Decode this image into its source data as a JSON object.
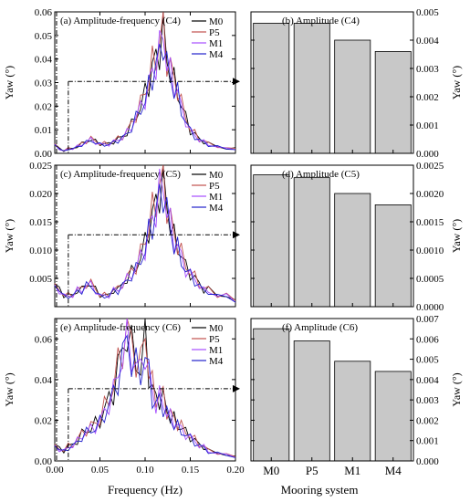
{
  "colors": {
    "M0": "#000000",
    "P5": "#c0504d",
    "M1": "#a64dff",
    "M4": "#2222cc",
    "bar_fill": "#c8c8c8"
  },
  "left_xlabel": "Frequency (Hz)",
  "right_xlabel": "Mooring system",
  "chart_data": [
    {
      "type": "line",
      "title": "(a) Amplitude-frequency (C4)",
      "ylabel": "Yaw (°)",
      "xlim": [
        0,
        0.2
      ],
      "ylim": [
        0,
        0.06
      ],
      "xticks": [
        "0.00",
        "0.05",
        "0.10",
        "0.15",
        "0.20"
      ],
      "yticks": [
        "0.00",
        "0.01",
        "0.02",
        "0.03",
        "0.04",
        "0.05",
        "0.06"
      ],
      "peak_level": 0.0305,
      "legend": [
        "M0",
        "P5",
        "M1",
        "M4"
      ],
      "spectrum": {
        "x": [
          0,
          0.005,
          0.01,
          0.015,
          0.02,
          0.025,
          0.03,
          0.035,
          0.04,
          0.045,
          0.05,
          0.055,
          0.06,
          0.065,
          0.07,
          0.075,
          0.08,
          0.085,
          0.09,
          0.095,
          0.1,
          0.104,
          0.108,
          0.112,
          0.116,
          0.12,
          0.124,
          0.128,
          0.132,
          0.136,
          0.14,
          0.145,
          0.15,
          0.155,
          0.16,
          0.165,
          0.17,
          0.18,
          0.19,
          0.2
        ],
        "y": [
          0.004,
          0.002,
          0.001,
          0.002,
          0.002,
          0.003,
          0.004,
          0.005,
          0.006,
          0.005,
          0.004,
          0.004,
          0.004,
          0.005,
          0.006,
          0.007,
          0.009,
          0.012,
          0.016,
          0.02,
          0.025,
          0.03,
          0.036,
          0.04,
          0.045,
          0.055,
          0.04,
          0.035,
          0.03,
          0.027,
          0.02,
          0.015,
          0.01,
          0.008,
          0.006,
          0.005,
          0.004,
          0.003,
          0.002,
          0.002
        ]
      }
    },
    {
      "type": "bar",
      "title": "(b) Amplitude (C4)",
      "ylabel": "Yaw (°)",
      "categories": [
        "M0",
        "P5",
        "M1",
        "M4"
      ],
      "values": [
        0.0046,
        0.0046,
        0.004,
        0.0036
      ],
      "ylim": [
        0,
        0.005
      ],
      "yticks": [
        "0.000",
        "0.001",
        "0.002",
        "0.003",
        "0.004",
        "0.005"
      ]
    },
    {
      "type": "line",
      "title": "(c) Amplitude-frequency (C5)",
      "ylabel": "Yaw (°)",
      "xlim": [
        0,
        0.2
      ],
      "ylim": [
        0,
        0.025
      ],
      "xticks": [
        "0.00",
        "0.05",
        "0.10",
        "0.15",
        "0.20"
      ],
      "yticks": [
        "0.005",
        "0.010",
        "0.015",
        "0.020",
        "0.025"
      ],
      "peak_level": 0.0127,
      "legend": [
        "M0",
        "P5",
        "M1",
        "M4"
      ],
      "spectrum": {
        "x": [
          0,
          0.005,
          0.01,
          0.015,
          0.02,
          0.025,
          0.03,
          0.035,
          0.04,
          0.045,
          0.05,
          0.055,
          0.06,
          0.065,
          0.07,
          0.075,
          0.08,
          0.085,
          0.09,
          0.095,
          0.1,
          0.104,
          0.108,
          0.112,
          0.116,
          0.12,
          0.124,
          0.128,
          0.132,
          0.136,
          0.14,
          0.145,
          0.15,
          0.155,
          0.16,
          0.165,
          0.17,
          0.18,
          0.19,
          0.2
        ],
        "y": [
          0.004,
          0.003,
          0.002,
          0.002,
          0.002,
          0.003,
          0.003,
          0.004,
          0.004,
          0.003,
          0.002,
          0.002,
          0.002,
          0.003,
          0.003,
          0.004,
          0.005,
          0.006,
          0.007,
          0.009,
          0.011,
          0.014,
          0.016,
          0.018,
          0.021,
          0.023,
          0.018,
          0.015,
          0.012,
          0.011,
          0.009,
          0.007,
          0.006,
          0.005,
          0.004,
          0.003,
          0.003,
          0.002,
          0.002,
          0.001
        ]
      }
    },
    {
      "type": "bar",
      "title": "(d) Amplitude (C5)",
      "ylabel": "Yaw (°)",
      "categories": [
        "M0",
        "P5",
        "M1",
        "M4"
      ],
      "values": [
        0.00233,
        0.00228,
        0.002,
        0.0018
      ],
      "ylim": [
        0,
        0.0025
      ],
      "yticks": [
        "0.0000",
        "0.0005",
        "0.0010",
        "0.0015",
        "0.0020",
        "0.0025"
      ]
    },
    {
      "type": "line",
      "title": "(e) Amplitude-frequency (C6)",
      "ylabel": "Yaw (°)",
      "xlim": [
        0,
        0.2
      ],
      "ylim": [
        0,
        0.07
      ],
      "xticks": [
        "0.00",
        "0.05",
        "0.10",
        "0.15",
        "0.20"
      ],
      "yticks": [
        "0.00",
        "0.02",
        "0.04",
        "0.06"
      ],
      "peak_level": 0.0355,
      "legend": [
        "M0",
        "P5",
        "M1",
        "M4"
      ],
      "spectrum": {
        "x": [
          0,
          0.005,
          0.01,
          0.015,
          0.02,
          0.025,
          0.03,
          0.035,
          0.04,
          0.045,
          0.05,
          0.055,
          0.06,
          0.065,
          0.07,
          0.075,
          0.08,
          0.085,
          0.09,
          0.095,
          0.1,
          0.104,
          0.108,
          0.112,
          0.116,
          0.12,
          0.124,
          0.128,
          0.132,
          0.136,
          0.14,
          0.145,
          0.15,
          0.155,
          0.16,
          0.165,
          0.17,
          0.18,
          0.19,
          0.2
        ],
        "y": [
          0.008,
          0.006,
          0.005,
          0.007,
          0.008,
          0.01,
          0.013,
          0.015,
          0.016,
          0.018,
          0.02,
          0.025,
          0.03,
          0.035,
          0.045,
          0.055,
          0.065,
          0.055,
          0.05,
          0.045,
          0.06,
          0.045,
          0.035,
          0.03,
          0.032,
          0.03,
          0.025,
          0.022,
          0.02,
          0.018,
          0.016,
          0.014,
          0.012,
          0.01,
          0.008,
          0.007,
          0.005,
          0.004,
          0.003,
          0.002
        ]
      }
    },
    {
      "type": "bar",
      "title": "(f) Amplitude (C6)",
      "ylabel": "Yaw (°)",
      "categories": [
        "M0",
        "P5",
        "M1",
        "M4"
      ],
      "values": [
        0.0065,
        0.0059,
        0.0049,
        0.0044
      ],
      "ylim": [
        0,
        0.007
      ],
      "yticks": [
        "0.000",
        "0.001",
        "0.002",
        "0.003",
        "0.004",
        "0.005",
        "0.006",
        "0.007"
      ]
    }
  ]
}
